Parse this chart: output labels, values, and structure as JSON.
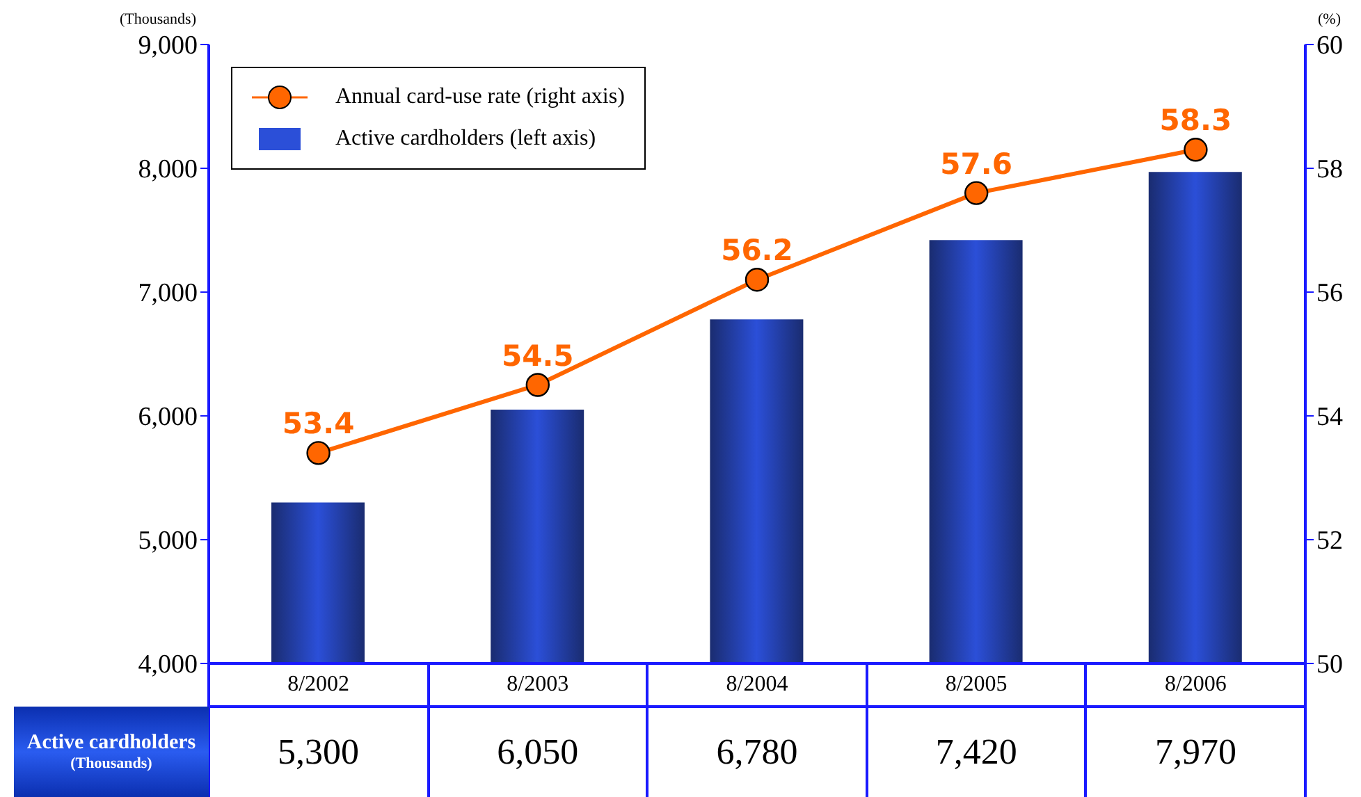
{
  "chart_data": {
    "type": "bar",
    "categories": [
      "8/2002",
      "8/2003",
      "8/2004",
      "8/2005",
      "8/2006"
    ],
    "series": [
      {
        "name": "Active cardholders (left axis)",
        "color": "#2b4fd8",
        "values": [
          5300,
          6050,
          6780,
          7420,
          7970
        ],
        "value_labels": [
          "5,300",
          "6,050",
          "6,780",
          "7,420",
          "7,970"
        ]
      },
      {
        "name": "Annual card-use rate (right axis)",
        "type": "line",
        "axis": "y2",
        "color": "#ff6600",
        "values": [
          53.4,
          54.5,
          56.2,
          57.6,
          58.3
        ],
        "value_labels": [
          "53.4",
          "54.5",
          "56.2",
          "57.6",
          "58.3"
        ]
      }
    ],
    "ylabel": "(Thousands)",
    "y2label": "(%)",
    "ylim": [
      4000,
      9000
    ],
    "yticks": [
      {
        "value": 4000,
        "label": "4,000"
      },
      {
        "value": 5000,
        "label": "5,000"
      },
      {
        "value": 6000,
        "label": "6,000"
      },
      {
        "value": 7000,
        "label": "7,000"
      },
      {
        "value": 8000,
        "label": "8,000"
      },
      {
        "value": 9000,
        "label": "9,000"
      }
    ],
    "y2lim": [
      50,
      60
    ],
    "y2ticks": [
      50,
      52,
      54,
      56,
      58,
      60
    ],
    "annotations": [
      "Active cardholders",
      "(Thousands)"
    ],
    "legend": "top left",
    "marker": "circle"
  }
}
